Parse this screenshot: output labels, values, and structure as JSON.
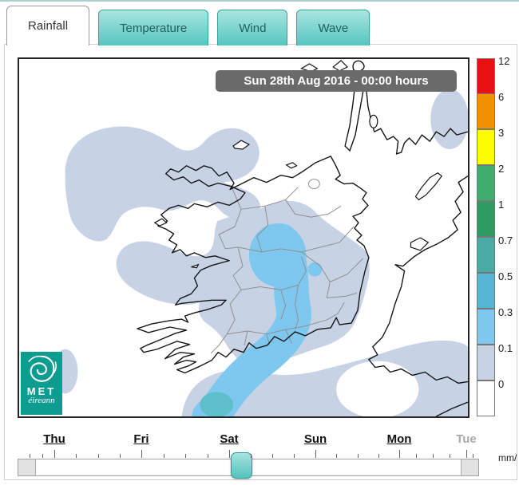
{
  "tabs": [
    {
      "label": "Rainfall",
      "active": true
    },
    {
      "label": "Temperature",
      "active": false
    },
    {
      "label": "Wind",
      "active": false
    },
    {
      "label": "Wave",
      "active": false
    }
  ],
  "map": {
    "title": "Sun 28th Aug 2016 - 00:00 hours",
    "logo_line1": "MET",
    "logo_line2": "éireann"
  },
  "legend": {
    "unit": "mm/",
    "entries": [
      {
        "value": "12",
        "color": "#e81010"
      },
      {
        "value": "6",
        "color": "#f19100"
      },
      {
        "value": "3",
        "color": "#fdfd00"
      },
      {
        "value": "2",
        "color": "#3fae6c"
      },
      {
        "value": "1",
        "color": "#2e9c62"
      },
      {
        "value": "0.7",
        "color": "#49aba3"
      },
      {
        "value": "0.5",
        "color": "#57b6d3"
      },
      {
        "value": "0.3",
        "color": "#7ec8ef"
      },
      {
        "value": "0.1",
        "color": "#c8d2e5"
      },
      {
        "value": "0",
        "color": "#ffffff"
      }
    ]
  },
  "timeline": {
    "days": [
      {
        "label": "Thu",
        "enabled": true
      },
      {
        "label": "Fri",
        "enabled": true
      },
      {
        "label": "Sat",
        "enabled": true
      },
      {
        "label": "Sun",
        "enabled": true
      },
      {
        "label": "Mon",
        "enabled": true
      },
      {
        "label": "Tue",
        "enabled": false
      }
    ]
  },
  "rain_colors": {
    "r01": "#c8d2e5",
    "r03": "#7ec8ef",
    "r05": "#5fbfca"
  }
}
